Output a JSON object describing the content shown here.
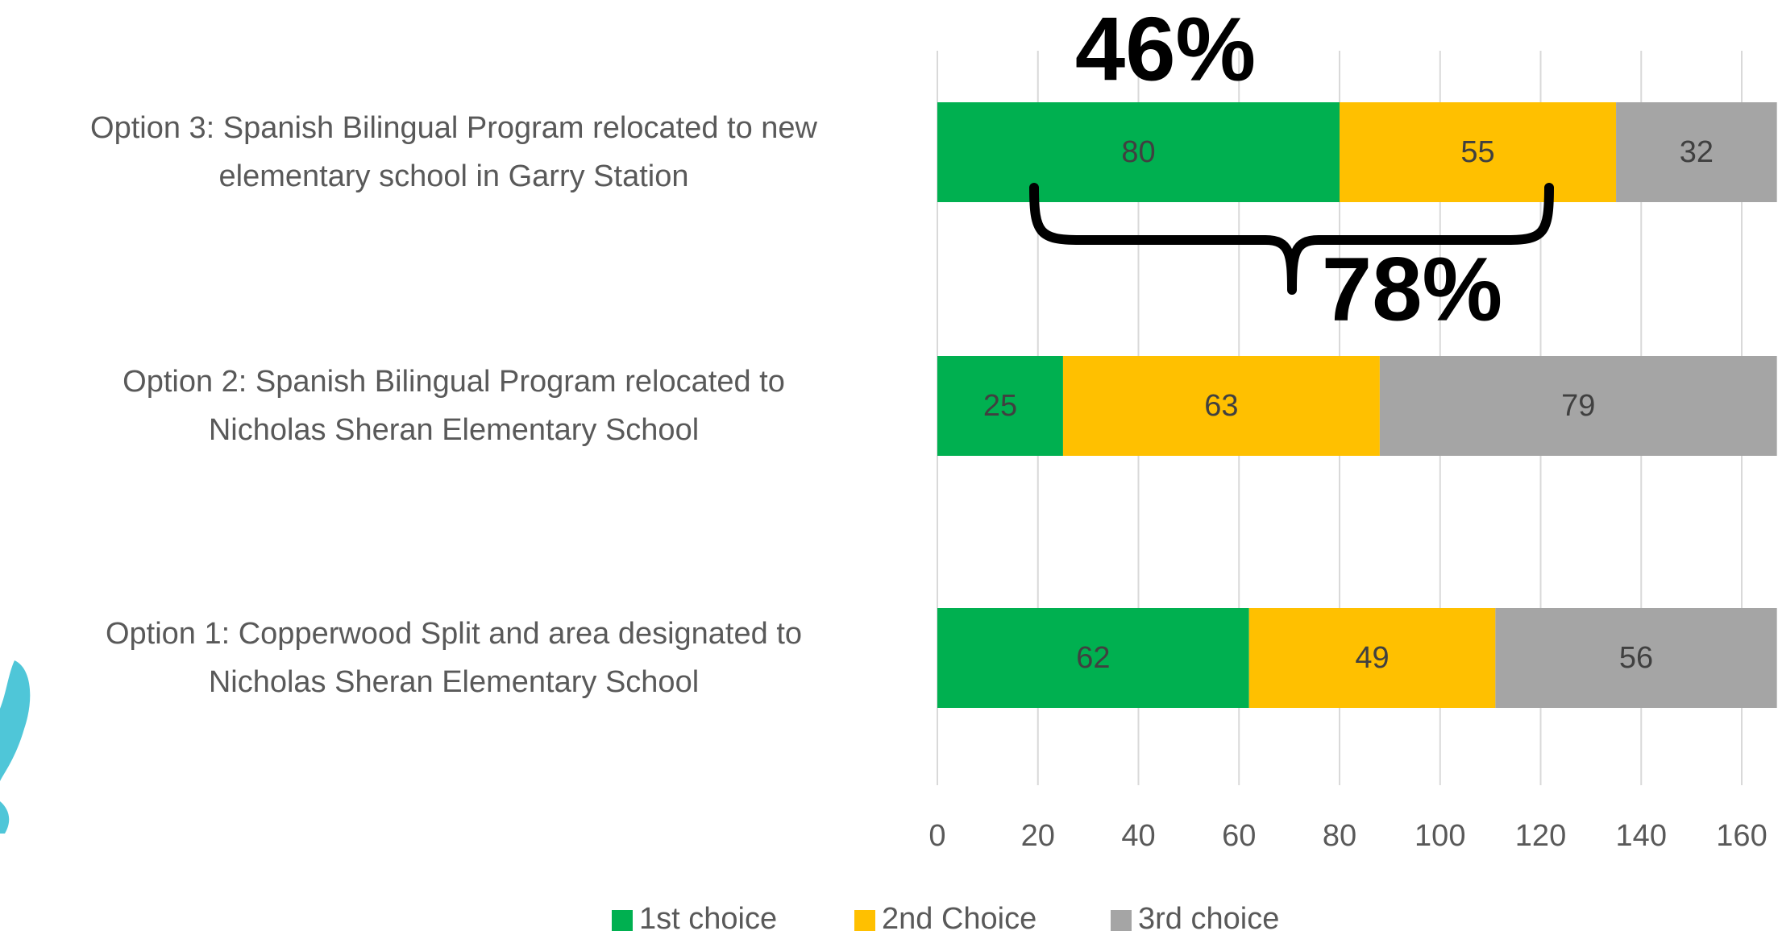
{
  "chart_data": {
    "type": "stacked_bar",
    "orientation": "horizontal",
    "categories": [
      "Option 3: Spanish Bilingual Program relocated to new\nelementary school in Garry Station",
      "Option 2: Spanish Bilingual Program relocated to\nNicholas Sheran Elementary School",
      "Option 1: Copperwood Split and area designated to\nNicholas Sheran Elementary School"
    ],
    "series": [
      {
        "name": "1st choice",
        "color": "#00b050",
        "values": [
          80,
          25,
          62
        ]
      },
      {
        "name": "2nd Choice",
        "color": "#ffc000",
        "values": [
          55,
          63,
          49
        ]
      },
      {
        "name": "3rd choice",
        "color": "#a5a5a5",
        "values": [
          32,
          79,
          56
        ]
      }
    ],
    "xlim": [
      0,
      160
    ],
    "xticks": [
      0,
      20,
      40,
      60,
      80,
      100,
      120,
      140,
      160
    ],
    "grid": true,
    "legend": "bottom",
    "annotations": [
      "46%",
      "78%"
    ]
  }
}
